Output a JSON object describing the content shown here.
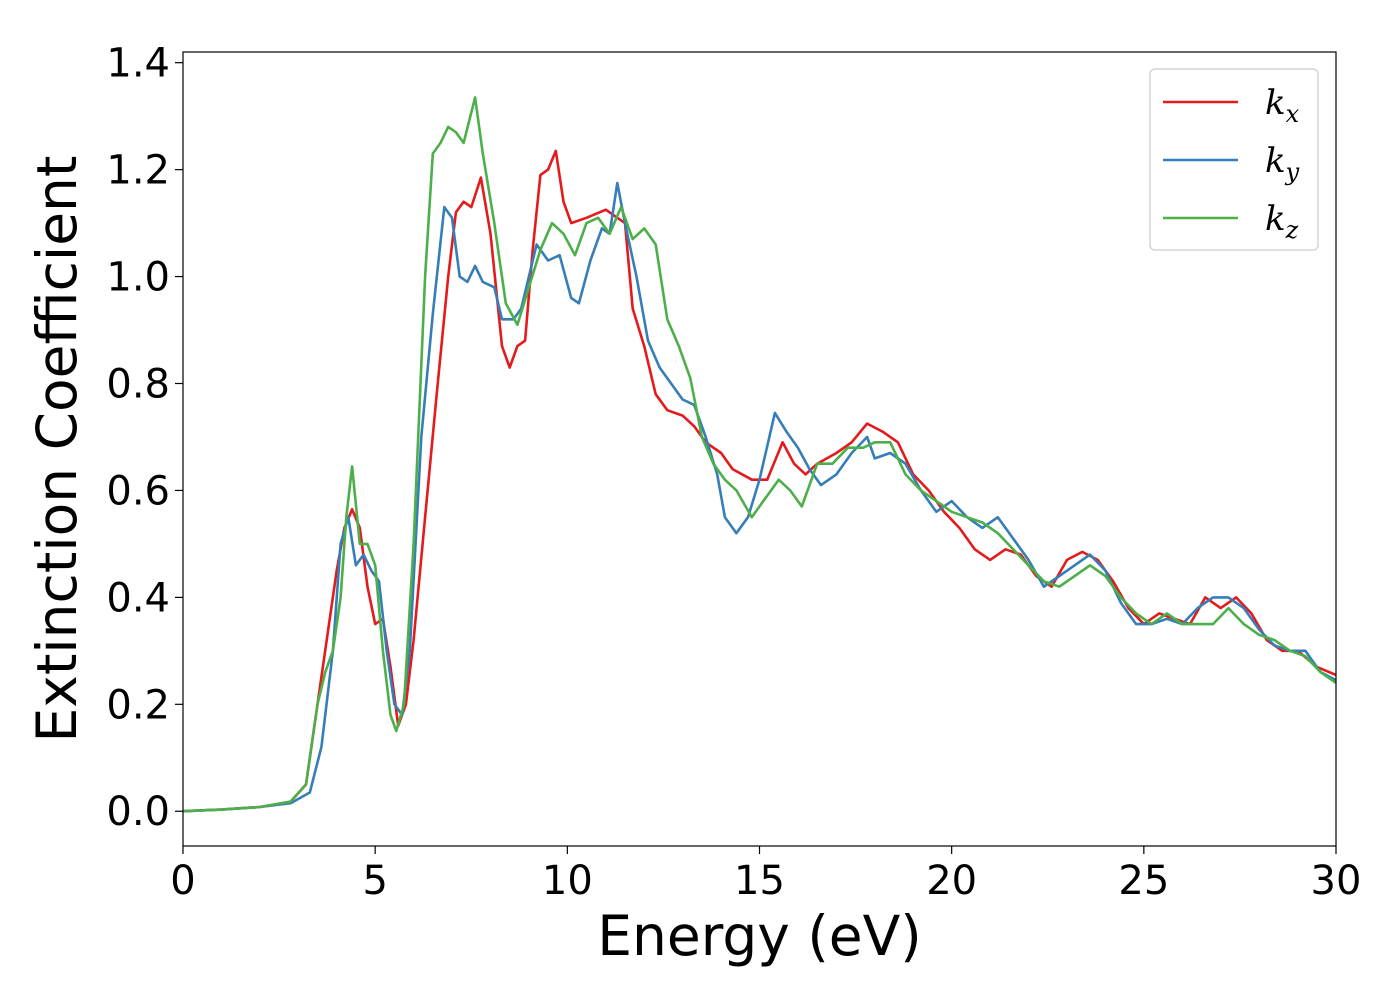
{
  "chart_data": {
    "type": "line",
    "xlabel": "Energy (eV)",
    "ylabel": "Extinction Coefficient",
    "xlim": [
      0,
      30
    ],
    "ylim": [
      -0.065,
      1.42
    ],
    "xticks": [
      0,
      5,
      10,
      15,
      20,
      25,
      30
    ],
    "yticks": [
      0.0,
      0.2,
      0.4,
      0.6,
      0.8,
      1.0,
      1.2,
      1.4
    ],
    "grid": false,
    "legend_position": "top-right",
    "series": [
      {
        "name": "k",
        "subscript": "x",
        "color": "#e41a1c",
        "points": [
          [
            0,
            0
          ],
          [
            1,
            0.003
          ],
          [
            2,
            0.008
          ],
          [
            2.8,
            0.018
          ],
          [
            3.2,
            0.05
          ],
          [
            3.5,
            0.2
          ],
          [
            3.8,
            0.35
          ],
          [
            4.0,
            0.45
          ],
          [
            4.2,
            0.53
          ],
          [
            4.4,
            0.565
          ],
          [
            4.6,
            0.53
          ],
          [
            4.8,
            0.42
          ],
          [
            5.0,
            0.35
          ],
          [
            5.2,
            0.36
          ],
          [
            5.4,
            0.27
          ],
          [
            5.6,
            0.16
          ],
          [
            5.8,
            0.2
          ],
          [
            6.0,
            0.32
          ],
          [
            6.3,
            0.55
          ],
          [
            6.6,
            0.78
          ],
          [
            6.9,
            1.0
          ],
          [
            7.1,
            1.12
          ],
          [
            7.3,
            1.14
          ],
          [
            7.5,
            1.13
          ],
          [
            7.75,
            1.185
          ],
          [
            8.0,
            1.08
          ],
          [
            8.3,
            0.87
          ],
          [
            8.5,
            0.83
          ],
          [
            8.7,
            0.87
          ],
          [
            8.9,
            0.88
          ],
          [
            9.1,
            1.05
          ],
          [
            9.3,
            1.19
          ],
          [
            9.5,
            1.2
          ],
          [
            9.7,
            1.235
          ],
          [
            9.9,
            1.14
          ],
          [
            10.1,
            1.1
          ],
          [
            10.5,
            1.11
          ],
          [
            11.0,
            1.125
          ],
          [
            11.3,
            1.11
          ],
          [
            11.5,
            1.1
          ],
          [
            11.7,
            0.94
          ],
          [
            12.0,
            0.87
          ],
          [
            12.3,
            0.78
          ],
          [
            12.6,
            0.75
          ],
          [
            13.0,
            0.74
          ],
          [
            13.3,
            0.72
          ],
          [
            13.6,
            0.69
          ],
          [
            14.0,
            0.67
          ],
          [
            14.3,
            0.64
          ],
          [
            14.8,
            0.62
          ],
          [
            15.2,
            0.62
          ],
          [
            15.6,
            0.69
          ],
          [
            15.9,
            0.65
          ],
          [
            16.2,
            0.63
          ],
          [
            16.5,
            0.65
          ],
          [
            17.0,
            0.67
          ],
          [
            17.4,
            0.69
          ],
          [
            17.8,
            0.725
          ],
          [
            18.2,
            0.71
          ],
          [
            18.6,
            0.69
          ],
          [
            19.0,
            0.63
          ],
          [
            19.4,
            0.6
          ],
          [
            19.8,
            0.56
          ],
          [
            20.2,
            0.53
          ],
          [
            20.6,
            0.49
          ],
          [
            21.0,
            0.47
          ],
          [
            21.4,
            0.49
          ],
          [
            21.8,
            0.48
          ],
          [
            22.2,
            0.44
          ],
          [
            22.6,
            0.42
          ],
          [
            23.0,
            0.47
          ],
          [
            23.4,
            0.485
          ],
          [
            23.8,
            0.47
          ],
          [
            24.2,
            0.43
          ],
          [
            24.6,
            0.38
          ],
          [
            25.0,
            0.35
          ],
          [
            25.4,
            0.37
          ],
          [
            25.8,
            0.36
          ],
          [
            26.2,
            0.35
          ],
          [
            26.6,
            0.4
          ],
          [
            27.0,
            0.38
          ],
          [
            27.4,
            0.4
          ],
          [
            27.8,
            0.37
          ],
          [
            28.2,
            0.32
          ],
          [
            28.6,
            0.3
          ],
          [
            29.0,
            0.3
          ],
          [
            29.5,
            0.27
          ],
          [
            30.0,
            0.255
          ]
        ]
      },
      {
        "name": "k",
        "subscript": "y",
        "color": "#377eb8",
        "points": [
          [
            0,
            0
          ],
          [
            1,
            0.003
          ],
          [
            2,
            0.008
          ],
          [
            2.8,
            0.015
          ],
          [
            3.3,
            0.035
          ],
          [
            3.6,
            0.12
          ],
          [
            3.9,
            0.3
          ],
          [
            4.1,
            0.5
          ],
          [
            4.3,
            0.55
          ],
          [
            4.5,
            0.46
          ],
          [
            4.7,
            0.48
          ],
          [
            4.9,
            0.45
          ],
          [
            5.1,
            0.43
          ],
          [
            5.3,
            0.3
          ],
          [
            5.5,
            0.2
          ],
          [
            5.7,
            0.18
          ],
          [
            5.9,
            0.3
          ],
          [
            6.2,
            0.7
          ],
          [
            6.5,
            0.93
          ],
          [
            6.8,
            1.13
          ],
          [
            7.0,
            1.11
          ],
          [
            7.2,
            1.0
          ],
          [
            7.4,
            0.99
          ],
          [
            7.6,
            1.02
          ],
          [
            7.8,
            0.99
          ],
          [
            8.1,
            0.98
          ],
          [
            8.3,
            0.92
          ],
          [
            8.6,
            0.92
          ],
          [
            8.8,
            0.94
          ],
          [
            9.0,
            1.0
          ],
          [
            9.2,
            1.06
          ],
          [
            9.5,
            1.03
          ],
          [
            9.8,
            1.04
          ],
          [
            10.1,
            0.96
          ],
          [
            10.3,
            0.95
          ],
          [
            10.6,
            1.03
          ],
          [
            10.9,
            1.09
          ],
          [
            11.1,
            1.08
          ],
          [
            11.3,
            1.175
          ],
          [
            11.5,
            1.1
          ],
          [
            11.8,
            1.0
          ],
          [
            12.1,
            0.88
          ],
          [
            12.4,
            0.83
          ],
          [
            12.7,
            0.8
          ],
          [
            13.0,
            0.77
          ],
          [
            13.3,
            0.76
          ],
          [
            13.6,
            0.7
          ],
          [
            13.9,
            0.63
          ],
          [
            14.1,
            0.55
          ],
          [
            14.4,
            0.52
          ],
          [
            14.7,
            0.55
          ],
          [
            15.0,
            0.62
          ],
          [
            15.4,
            0.745
          ],
          [
            15.7,
            0.71
          ],
          [
            16.0,
            0.68
          ],
          [
            16.3,
            0.64
          ],
          [
            16.6,
            0.61
          ],
          [
            17.0,
            0.63
          ],
          [
            17.4,
            0.67
          ],
          [
            17.8,
            0.7
          ],
          [
            18.0,
            0.66
          ],
          [
            18.4,
            0.67
          ],
          [
            18.8,
            0.65
          ],
          [
            19.2,
            0.6
          ],
          [
            19.6,
            0.56
          ],
          [
            20.0,
            0.58
          ],
          [
            20.4,
            0.55
          ],
          [
            20.8,
            0.53
          ],
          [
            21.2,
            0.55
          ],
          [
            21.6,
            0.51
          ],
          [
            22.0,
            0.47
          ],
          [
            22.4,
            0.42
          ],
          [
            22.8,
            0.44
          ],
          [
            23.2,
            0.46
          ],
          [
            23.6,
            0.48
          ],
          [
            24.0,
            0.45
          ],
          [
            24.4,
            0.39
          ],
          [
            24.8,
            0.35
          ],
          [
            25.2,
            0.35
          ],
          [
            25.6,
            0.36
          ],
          [
            26.0,
            0.35
          ],
          [
            26.4,
            0.38
          ],
          [
            26.8,
            0.4
          ],
          [
            27.2,
            0.4
          ],
          [
            27.6,
            0.38
          ],
          [
            28.0,
            0.34
          ],
          [
            28.4,
            0.31
          ],
          [
            28.8,
            0.3
          ],
          [
            29.2,
            0.3
          ],
          [
            29.6,
            0.26
          ],
          [
            30.0,
            0.245
          ]
        ]
      },
      {
        "name": "k",
        "subscript": "z",
        "color": "#4daf4a",
        "points": [
          [
            0,
            0
          ],
          [
            1,
            0.003
          ],
          [
            2,
            0.008
          ],
          [
            2.8,
            0.018
          ],
          [
            3.2,
            0.05
          ],
          [
            3.5,
            0.2
          ],
          [
            3.7,
            0.26
          ],
          [
            3.9,
            0.3
          ],
          [
            4.1,
            0.4
          ],
          [
            4.25,
            0.55
          ],
          [
            4.4,
            0.645
          ],
          [
            4.6,
            0.5
          ],
          [
            4.8,
            0.5
          ],
          [
            5.0,
            0.46
          ],
          [
            5.2,
            0.3
          ],
          [
            5.4,
            0.18
          ],
          [
            5.55,
            0.15
          ],
          [
            5.75,
            0.2
          ],
          [
            6.0,
            0.5
          ],
          [
            6.3,
            1.0
          ],
          [
            6.5,
            1.23
          ],
          [
            6.7,
            1.25
          ],
          [
            6.9,
            1.28
          ],
          [
            7.1,
            1.27
          ],
          [
            7.3,
            1.25
          ],
          [
            7.6,
            1.335
          ],
          [
            7.8,
            1.23
          ],
          [
            8.1,
            1.1
          ],
          [
            8.4,
            0.95
          ],
          [
            8.7,
            0.91
          ],
          [
            9.0,
            0.98
          ],
          [
            9.3,
            1.05
          ],
          [
            9.6,
            1.1
          ],
          [
            9.9,
            1.08
          ],
          [
            10.2,
            1.04
          ],
          [
            10.5,
            1.1
          ],
          [
            10.8,
            1.11
          ],
          [
            11.1,
            1.08
          ],
          [
            11.4,
            1.13
          ],
          [
            11.7,
            1.07
          ],
          [
            12.0,
            1.09
          ],
          [
            12.3,
            1.06
          ],
          [
            12.6,
            0.92
          ],
          [
            12.9,
            0.87
          ],
          [
            13.2,
            0.81
          ],
          [
            13.5,
            0.7
          ],
          [
            13.8,
            0.65
          ],
          [
            14.1,
            0.62
          ],
          [
            14.4,
            0.6
          ],
          [
            14.8,
            0.55
          ],
          [
            15.1,
            0.58
          ],
          [
            15.5,
            0.62
          ],
          [
            15.8,
            0.6
          ],
          [
            16.1,
            0.57
          ],
          [
            16.5,
            0.65
          ],
          [
            16.9,
            0.65
          ],
          [
            17.3,
            0.68
          ],
          [
            17.7,
            0.68
          ],
          [
            18.0,
            0.69
          ],
          [
            18.4,
            0.69
          ],
          [
            18.8,
            0.63
          ],
          [
            19.2,
            0.6
          ],
          [
            19.6,
            0.58
          ],
          [
            20.0,
            0.56
          ],
          [
            20.4,
            0.55
          ],
          [
            20.8,
            0.54
          ],
          [
            21.2,
            0.52
          ],
          [
            21.6,
            0.49
          ],
          [
            22.0,
            0.46
          ],
          [
            22.4,
            0.43
          ],
          [
            22.8,
            0.42
          ],
          [
            23.2,
            0.44
          ],
          [
            23.6,
            0.46
          ],
          [
            24.0,
            0.44
          ],
          [
            24.4,
            0.4
          ],
          [
            24.8,
            0.37
          ],
          [
            25.2,
            0.35
          ],
          [
            25.6,
            0.37
          ],
          [
            26.0,
            0.35
          ],
          [
            26.4,
            0.35
          ],
          [
            26.8,
            0.35
          ],
          [
            27.2,
            0.38
          ],
          [
            27.6,
            0.35
          ],
          [
            28.0,
            0.33
          ],
          [
            28.4,
            0.32
          ],
          [
            28.8,
            0.3
          ],
          [
            29.2,
            0.29
          ],
          [
            29.6,
            0.26
          ],
          [
            30.0,
            0.24
          ]
        ]
      }
    ]
  }
}
